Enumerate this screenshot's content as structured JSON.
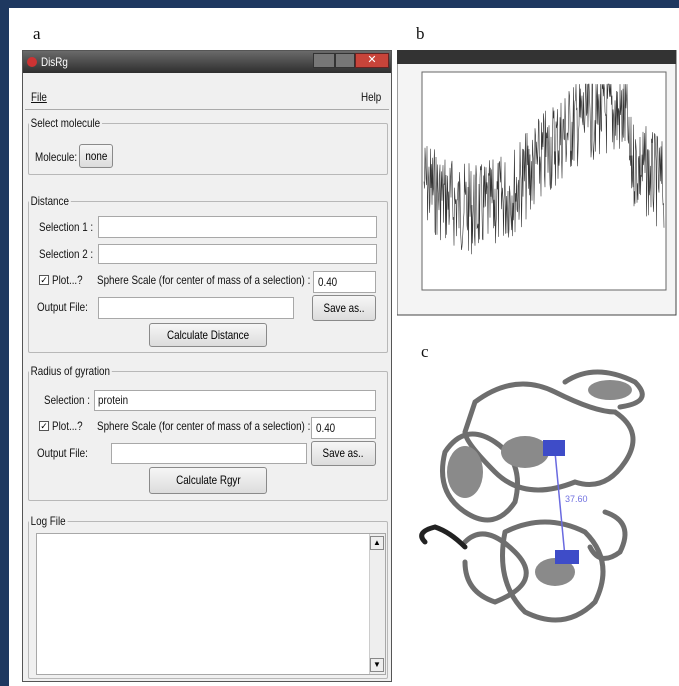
{
  "panel_labels": {
    "a": "a",
    "b": "b",
    "c": "c"
  },
  "window": {
    "title": "DisRg",
    "menu": {
      "file": "File",
      "help": "Help"
    }
  },
  "select_molecule": {
    "legend": "Select molecule",
    "label": "Molecule:",
    "button": "none"
  },
  "distance": {
    "legend": "Distance",
    "selection1": "Selection 1 :",
    "selection2": "Selection 2 :",
    "plot": "Plot...?",
    "sphere_scale": "Sphere Scale (for center of mass of a selection) :",
    "scale_value": "0.40",
    "output_file": "Output File:",
    "save_as": "Save as..",
    "calculate": "Calculate Distance"
  },
  "radius": {
    "legend": "Radius of gyration",
    "selection": "Selection :",
    "selection_value": "protein",
    "plot": "Plot...?",
    "sphere_scale": "Sphere Scale (for center of mass of a selection) :",
    "scale_value": "0.40",
    "output_file": "Output File:",
    "save_as": "Save as..",
    "calculate": "Calculate Rgyr"
  },
  "log": {
    "legend": "Log File"
  },
  "structure": {
    "distance_label": "37.60"
  }
}
